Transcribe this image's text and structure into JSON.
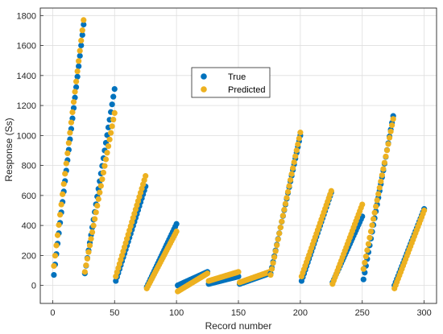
{
  "chart_data": {
    "type": "scatter",
    "title": "",
    "xlabel": "Record number",
    "ylabel": "Response (Ss)",
    "xlim": [
      -10,
      310
    ],
    "ylim": [
      -120,
      1850
    ],
    "xticks": [
      0,
      50,
      100,
      150,
      200,
      250,
      300
    ],
    "yticks": [
      0,
      200,
      400,
      600,
      800,
      1000,
      1200,
      1400,
      1600,
      1800
    ],
    "grid": true,
    "legend_position": "upper-center",
    "segments": [
      {
        "x_start": 1,
        "x_end": 25,
        "true_start": 70,
        "true_end": 1740,
        "pred_start": 130,
        "pred_end": 1770
      },
      {
        "x_start": 26,
        "x_end": 50,
        "true_start": 80,
        "true_end": 1310,
        "pred_start": 90,
        "pred_end": 1150
      },
      {
        "x_start": 51,
        "x_end": 75,
        "true_start": 30,
        "true_end": 660,
        "pred_start": 60,
        "pred_end": 730
      },
      {
        "x_start": 76,
        "x_end": 100,
        "true_start": -10,
        "true_end": 410,
        "pred_start": -20,
        "pred_end": 360
      },
      {
        "x_start": 101,
        "x_end": 125,
        "true_start": 0,
        "true_end": 90,
        "pred_start": -40,
        "pred_end": 80
      },
      {
        "x_start": 126,
        "x_end": 150,
        "true_start": 10,
        "true_end": 60,
        "pred_start": 30,
        "pred_end": 90
      },
      {
        "x_start": 151,
        "x_end": 175,
        "true_start": 10,
        "true_end": 80,
        "pred_start": 20,
        "pred_end": 90
      },
      {
        "x_start": 176,
        "x_end": 200,
        "true_start": 80,
        "true_end": 1000,
        "pred_start": 70,
        "pred_end": 1020
      },
      {
        "x_start": 201,
        "x_end": 225,
        "true_start": 30,
        "true_end": 620,
        "pred_start": 60,
        "pred_end": 630
      },
      {
        "x_start": 226,
        "x_end": 250,
        "true_start": 20,
        "true_end": 460,
        "pred_start": 10,
        "pred_end": 540
      },
      {
        "x_start": 251,
        "x_end": 275,
        "true_start": 40,
        "true_end": 1130,
        "pred_start": 110,
        "pred_end": 1110
      },
      {
        "x_start": 276,
        "x_end": 300,
        "true_start": 0,
        "true_end": 510,
        "pred_start": -20,
        "pred_end": 500
      }
    ],
    "series": [
      {
        "name": "True",
        "color": "#0072BD"
      },
      {
        "name": "Predicted",
        "color": "#EDB120"
      }
    ]
  }
}
